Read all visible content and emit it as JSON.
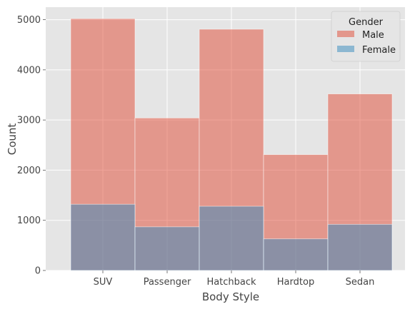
{
  "chart_data": {
    "type": "bar",
    "categories": [
      "SUV",
      "Passenger",
      "Hatchback",
      "Hardtop",
      "Sedan"
    ],
    "series": [
      {
        "name": "Male",
        "values": [
          5020,
          3040,
          4810,
          2310,
          3520
        ],
        "color": "#E24A33"
      },
      {
        "name": "Female",
        "values": [
          1320,
          870,
          1280,
          630,
          920
        ],
        "color": "#348ABD"
      }
    ],
    "xlabel": "Body Style",
    "ylabel": "Count",
    "ylim": [
      0,
      5250
    ],
    "yticks": [
      "0",
      "1000",
      "2000",
      "3000",
      "4000",
      "5000"
    ],
    "legend": {
      "title": "Gender",
      "placement": "top-right"
    },
    "grid": true,
    "style": "ggplot",
    "bar_opacity": 0.5,
    "colors": {
      "background": "#E5E5E5",
      "grid": "#FFFFFF"
    }
  }
}
